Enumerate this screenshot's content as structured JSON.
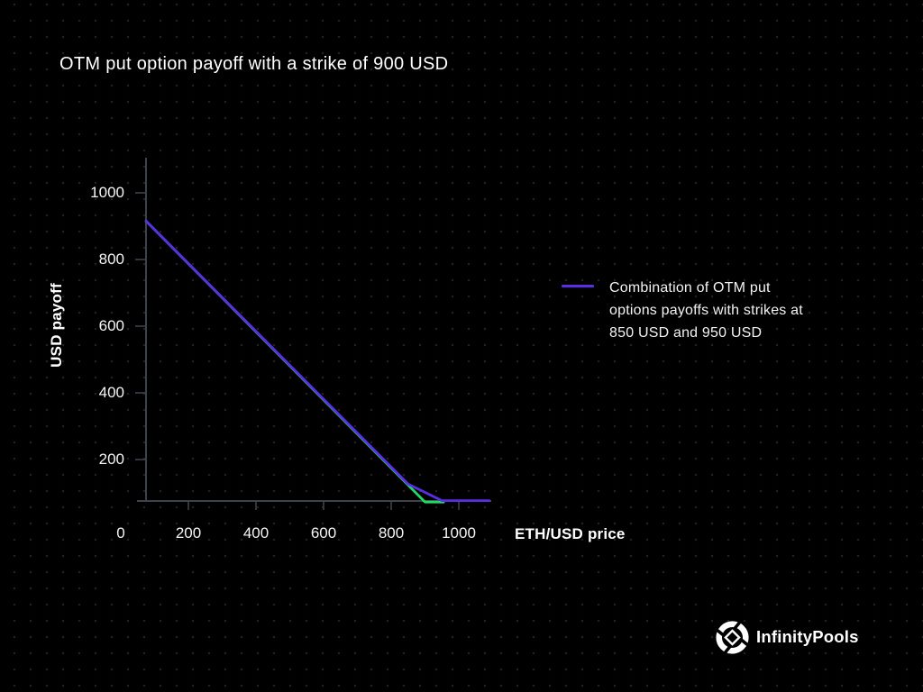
{
  "slide": {
    "title": "OTM put option payoff with a strike of 900 USD"
  },
  "brand": {
    "name": "InfinityPools",
    "icon": "pinwheel-logo-icon"
  },
  "chart_data": {
    "type": "line",
    "title": "OTM put option payoff with a strike of 900 USD",
    "xlabel": "ETH/USD price",
    "ylabel": "USD payoff",
    "x_ticks": [
      0,
      200,
      400,
      600,
      800,
      1000
    ],
    "y_ticks": [
      1000,
      800,
      600,
      400,
      200
    ],
    "xlim": [
      0,
      1100
    ],
    "ylim": [
      0,
      1100
    ],
    "grid": false,
    "background": "#000000",
    "axis_color": "#3d424b",
    "tick_label_color": "#f5f5f5",
    "legend": {
      "position": "right-center",
      "entries": [
        {
          "label": "Combination of OTM put\noptions payoffs with strikes at\n850 USD and 950 USD",
          "color": "#5c2de6"
        }
      ]
    },
    "series": [
      {
        "name": "OTM put option payoff with strike 900 USD (no legend entry)",
        "color": "#1fdd64",
        "in_legend": false,
        "points_x": [
          75,
          900,
          955
        ],
        "points_y": [
          825,
          0,
          0
        ]
      },
      {
        "name": "Combination of OTM put options payoffs with strikes at 850 USD and 950 USD",
        "color": "#5c2de6",
        "in_legend": true,
        "points_x": [
          75,
          850,
          950,
          1090
        ],
        "points_y": [
          825,
          50,
          0,
          0
        ]
      }
    ]
  }
}
